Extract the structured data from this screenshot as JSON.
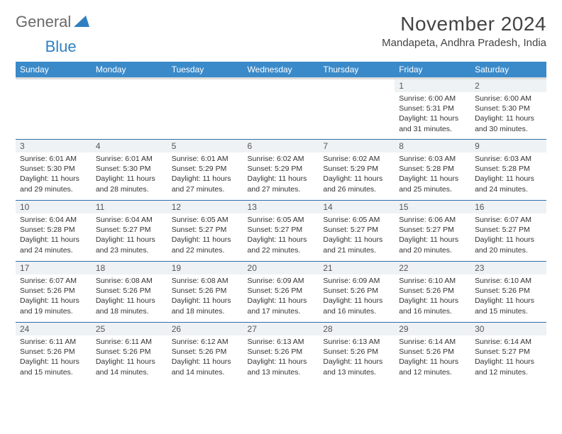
{
  "logo": {
    "text1": "General",
    "text2": "Blue"
  },
  "title": "November 2024",
  "location": "Mandapeta, Andhra Pradesh, India",
  "colors": {
    "header_bg": "#3a89c9",
    "header_text": "#ffffff",
    "day_separator": "#2f6da8",
    "daynum_bg": "#eef2f5",
    "logo_blue": "#2f7fc1",
    "logo_gray": "#6a6a6a"
  },
  "day_headers": [
    "Sunday",
    "Monday",
    "Tuesday",
    "Wednesday",
    "Thursday",
    "Friday",
    "Saturday"
  ],
  "weeks": [
    [
      {
        "n": "",
        "sr": "",
        "ss": "",
        "dl": ""
      },
      {
        "n": "",
        "sr": "",
        "ss": "",
        "dl": ""
      },
      {
        "n": "",
        "sr": "",
        "ss": "",
        "dl": ""
      },
      {
        "n": "",
        "sr": "",
        "ss": "",
        "dl": ""
      },
      {
        "n": "",
        "sr": "",
        "ss": "",
        "dl": ""
      },
      {
        "n": "1",
        "sr": "Sunrise: 6:00 AM",
        "ss": "Sunset: 5:31 PM",
        "dl": "Daylight: 11 hours and 31 minutes."
      },
      {
        "n": "2",
        "sr": "Sunrise: 6:00 AM",
        "ss": "Sunset: 5:30 PM",
        "dl": "Daylight: 11 hours and 30 minutes."
      }
    ],
    [
      {
        "n": "3",
        "sr": "Sunrise: 6:01 AM",
        "ss": "Sunset: 5:30 PM",
        "dl": "Daylight: 11 hours and 29 minutes."
      },
      {
        "n": "4",
        "sr": "Sunrise: 6:01 AM",
        "ss": "Sunset: 5:30 PM",
        "dl": "Daylight: 11 hours and 28 minutes."
      },
      {
        "n": "5",
        "sr": "Sunrise: 6:01 AM",
        "ss": "Sunset: 5:29 PM",
        "dl": "Daylight: 11 hours and 27 minutes."
      },
      {
        "n": "6",
        "sr": "Sunrise: 6:02 AM",
        "ss": "Sunset: 5:29 PM",
        "dl": "Daylight: 11 hours and 27 minutes."
      },
      {
        "n": "7",
        "sr": "Sunrise: 6:02 AM",
        "ss": "Sunset: 5:29 PM",
        "dl": "Daylight: 11 hours and 26 minutes."
      },
      {
        "n": "8",
        "sr": "Sunrise: 6:03 AM",
        "ss": "Sunset: 5:28 PM",
        "dl": "Daylight: 11 hours and 25 minutes."
      },
      {
        "n": "9",
        "sr": "Sunrise: 6:03 AM",
        "ss": "Sunset: 5:28 PM",
        "dl": "Daylight: 11 hours and 24 minutes."
      }
    ],
    [
      {
        "n": "10",
        "sr": "Sunrise: 6:04 AM",
        "ss": "Sunset: 5:28 PM",
        "dl": "Daylight: 11 hours and 24 minutes."
      },
      {
        "n": "11",
        "sr": "Sunrise: 6:04 AM",
        "ss": "Sunset: 5:27 PM",
        "dl": "Daylight: 11 hours and 23 minutes."
      },
      {
        "n": "12",
        "sr": "Sunrise: 6:05 AM",
        "ss": "Sunset: 5:27 PM",
        "dl": "Daylight: 11 hours and 22 minutes."
      },
      {
        "n": "13",
        "sr": "Sunrise: 6:05 AM",
        "ss": "Sunset: 5:27 PM",
        "dl": "Daylight: 11 hours and 22 minutes."
      },
      {
        "n": "14",
        "sr": "Sunrise: 6:05 AM",
        "ss": "Sunset: 5:27 PM",
        "dl": "Daylight: 11 hours and 21 minutes."
      },
      {
        "n": "15",
        "sr": "Sunrise: 6:06 AM",
        "ss": "Sunset: 5:27 PM",
        "dl": "Daylight: 11 hours and 20 minutes."
      },
      {
        "n": "16",
        "sr": "Sunrise: 6:07 AM",
        "ss": "Sunset: 5:27 PM",
        "dl": "Daylight: 11 hours and 20 minutes."
      }
    ],
    [
      {
        "n": "17",
        "sr": "Sunrise: 6:07 AM",
        "ss": "Sunset: 5:26 PM",
        "dl": "Daylight: 11 hours and 19 minutes."
      },
      {
        "n": "18",
        "sr": "Sunrise: 6:08 AM",
        "ss": "Sunset: 5:26 PM",
        "dl": "Daylight: 11 hours and 18 minutes."
      },
      {
        "n": "19",
        "sr": "Sunrise: 6:08 AM",
        "ss": "Sunset: 5:26 PM",
        "dl": "Daylight: 11 hours and 18 minutes."
      },
      {
        "n": "20",
        "sr": "Sunrise: 6:09 AM",
        "ss": "Sunset: 5:26 PM",
        "dl": "Daylight: 11 hours and 17 minutes."
      },
      {
        "n": "21",
        "sr": "Sunrise: 6:09 AM",
        "ss": "Sunset: 5:26 PM",
        "dl": "Daylight: 11 hours and 16 minutes."
      },
      {
        "n": "22",
        "sr": "Sunrise: 6:10 AM",
        "ss": "Sunset: 5:26 PM",
        "dl": "Daylight: 11 hours and 16 minutes."
      },
      {
        "n": "23",
        "sr": "Sunrise: 6:10 AM",
        "ss": "Sunset: 5:26 PM",
        "dl": "Daylight: 11 hours and 15 minutes."
      }
    ],
    [
      {
        "n": "24",
        "sr": "Sunrise: 6:11 AM",
        "ss": "Sunset: 5:26 PM",
        "dl": "Daylight: 11 hours and 15 minutes."
      },
      {
        "n": "25",
        "sr": "Sunrise: 6:11 AM",
        "ss": "Sunset: 5:26 PM",
        "dl": "Daylight: 11 hours and 14 minutes."
      },
      {
        "n": "26",
        "sr": "Sunrise: 6:12 AM",
        "ss": "Sunset: 5:26 PM",
        "dl": "Daylight: 11 hours and 14 minutes."
      },
      {
        "n": "27",
        "sr": "Sunrise: 6:13 AM",
        "ss": "Sunset: 5:26 PM",
        "dl": "Daylight: 11 hours and 13 minutes."
      },
      {
        "n": "28",
        "sr": "Sunrise: 6:13 AM",
        "ss": "Sunset: 5:26 PM",
        "dl": "Daylight: 11 hours and 13 minutes."
      },
      {
        "n": "29",
        "sr": "Sunrise: 6:14 AM",
        "ss": "Sunset: 5:26 PM",
        "dl": "Daylight: 11 hours and 12 minutes."
      },
      {
        "n": "30",
        "sr": "Sunrise: 6:14 AM",
        "ss": "Sunset: 5:27 PM",
        "dl": "Daylight: 11 hours and 12 minutes."
      }
    ]
  ]
}
